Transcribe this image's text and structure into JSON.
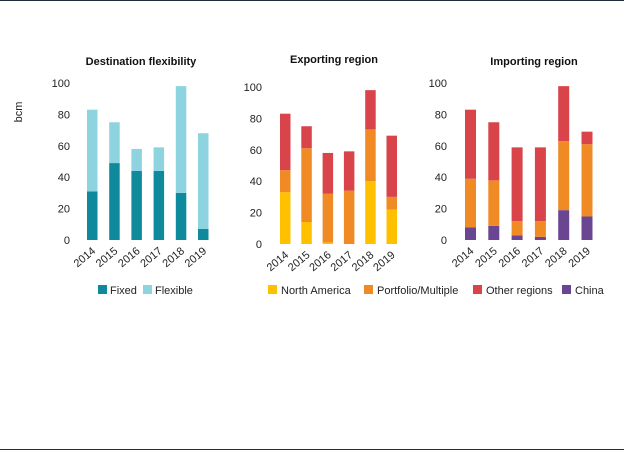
{
  "y_unit_label": "bcm",
  "colors": {
    "fixed": "#0e8a9c",
    "flexible": "#8dd3e0",
    "north_america": "#ffc000",
    "portfolio": "#ef8a25",
    "other_regions": "#d9434a",
    "china": "#6a4592"
  },
  "legend_left": [
    {
      "label": "Fixed",
      "color": "#0e8a9c"
    },
    {
      "label": "Flexible",
      "color": "#8dd3e0"
    }
  ],
  "legend_right": [
    {
      "label": "North America",
      "color": "#ffc000"
    },
    {
      "label": "Portfolio/Multiple",
      "color": "#ef8a25"
    },
    {
      "label": "Other regions",
      "color": "#d9434a"
    },
    {
      "label": "China",
      "color": "#6a4592"
    }
  ],
  "chart_data": [
    {
      "type": "bar",
      "stacked": true,
      "title": "Destination flexibility",
      "ylabel": "bcm",
      "ylim": [
        0,
        100
      ],
      "yticks": [
        0,
        20,
        40,
        60,
        80,
        100
      ],
      "categories": [
        "2014",
        "2015",
        "2016",
        "2017",
        "2018",
        "2019"
      ],
      "series": [
        {
          "name": "Fixed",
          "color": "#0e8a9c",
          "values": [
            31,
            49,
            44,
            44,
            30,
            7
          ]
        },
        {
          "name": "Flexible",
          "color": "#8dd3e0",
          "values": [
            52,
            26,
            14,
            15,
            68,
            61
          ]
        }
      ]
    },
    {
      "type": "bar",
      "stacked": true,
      "title": "Exporting region",
      "ylim": [
        0,
        100
      ],
      "yticks": [
        0,
        20,
        40,
        60,
        80,
        100
      ],
      "categories": [
        "2014",
        "2015",
        "2016",
        "2017",
        "2018",
        "2019"
      ],
      "series": [
        {
          "name": "North America",
          "color": "#ffc000",
          "values": [
            33,
            14,
            1,
            0,
            40,
            22
          ]
        },
        {
          "name": "Portfolio/Multiple",
          "color": "#ef8a25",
          "values": [
            14,
            47,
            31,
            34,
            33,
            8
          ]
        },
        {
          "name": "Other regions",
          "color": "#d9434a",
          "values": [
            36,
            14,
            26,
            25,
            25,
            39
          ]
        }
      ]
    },
    {
      "type": "bar",
      "stacked": true,
      "title": "Importing region",
      "ylim": [
        0,
        100
      ],
      "yticks": [
        0,
        20,
        40,
        60,
        80,
        100
      ],
      "categories": [
        "2014",
        "2015",
        "2016",
        "2017",
        "2018",
        "2019"
      ],
      "series": [
        {
          "name": "China",
          "color": "#6a4592",
          "values": [
            8,
            9,
            3,
            2,
            19,
            15
          ]
        },
        {
          "name": "Portfolio/Multiple",
          "color": "#ef8a25",
          "values": [
            31,
            29,
            9,
            10,
            44,
            46
          ]
        },
        {
          "name": "Other regions",
          "color": "#d9434a",
          "values": [
            44,
            37,
            47,
            47,
            35,
            8
          ]
        }
      ]
    }
  ]
}
